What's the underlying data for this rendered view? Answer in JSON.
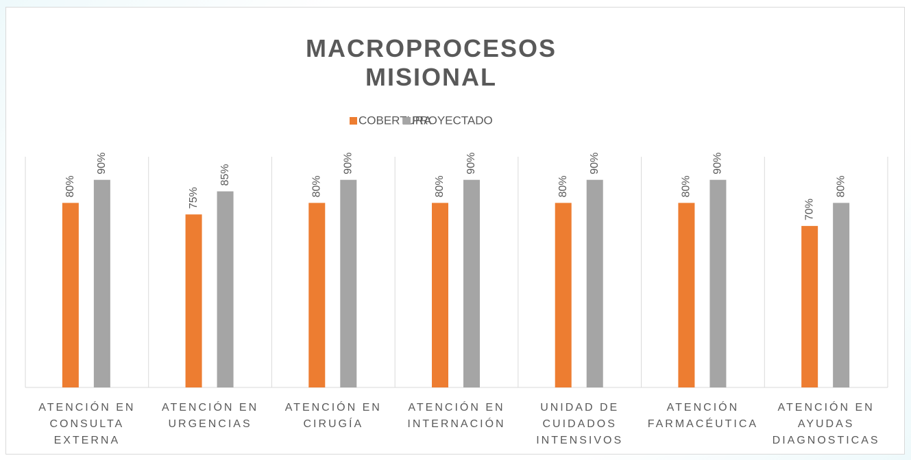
{
  "chart_data": {
    "type": "bar",
    "title": "MACROPROCESOS MISIONAL",
    "categories": [
      "ATENCIÓN EN CONSULTA EXTERNA",
      "ATENCIÓN EN URGENCIAS",
      "ATENCIÓN EN CIRUGÍA",
      "ATENCIÓN EN INTERNACIÓN",
      "UNIDAD DE CUIDADOS INTENSIVOS",
      "ATENCIÓN FARMACÉUTICA",
      "ATENCIÓN EN AYUDAS DIAGNOSTICAS"
    ],
    "series": [
      {
        "name": "COBERTURA",
        "color": "#ed7d31",
        "values": [
          80,
          75,
          80,
          80,
          80,
          80,
          70
        ],
        "value_labels": [
          "80%",
          "75%",
          "80%",
          "80%",
          "80%",
          "80%",
          "70%"
        ]
      },
      {
        "name": "PROYECTADO",
        "color": "#a5a5a5",
        "values": [
          90,
          85,
          90,
          90,
          90,
          90,
          80
        ],
        "value_labels": [
          "90%",
          "85%",
          "90%",
          "90%",
          "90%",
          "90%",
          "80%"
        ]
      }
    ],
    "ylim": [
      0,
      100
    ],
    "legend": "top"
  }
}
